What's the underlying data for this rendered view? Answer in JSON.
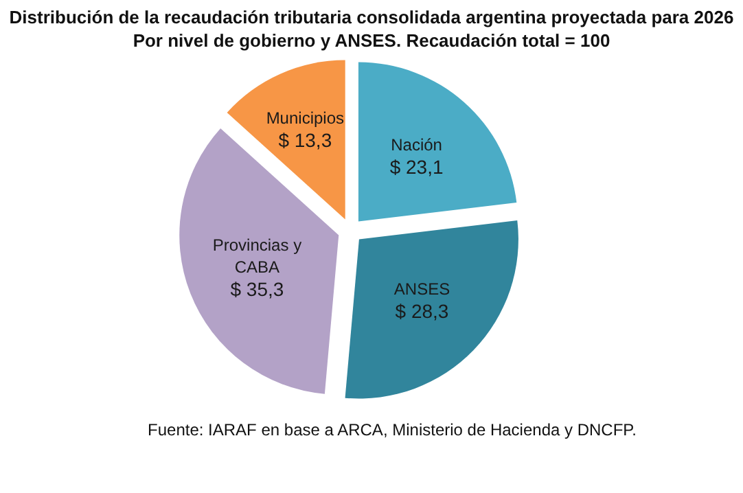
{
  "chart_data": {
    "type": "pie",
    "title": "Distribución de la recaudación tributaria consolidada argentina proyectada para 2026",
    "subtitle": "Por nivel de gobierno y ANSES. Recaudación total = 100",
    "categories": [
      "Nación",
      "ANSES",
      "Provincias y CABA",
      "Municipios"
    ],
    "values": [
      23.1,
      28.3,
      35.3,
      13.3
    ],
    "colors": [
      "#4bacc6",
      "#31859c",
      "#b3a2c7",
      "#f79646"
    ],
    "value_labels": [
      "$ 23,1",
      "$ 28,3",
      "$ 35,3",
      "$ 13,3"
    ],
    "annotations": [
      "Fuente: IARAF en base a ARCA, Ministerio de Hacienda y DNCFP."
    ]
  }
}
